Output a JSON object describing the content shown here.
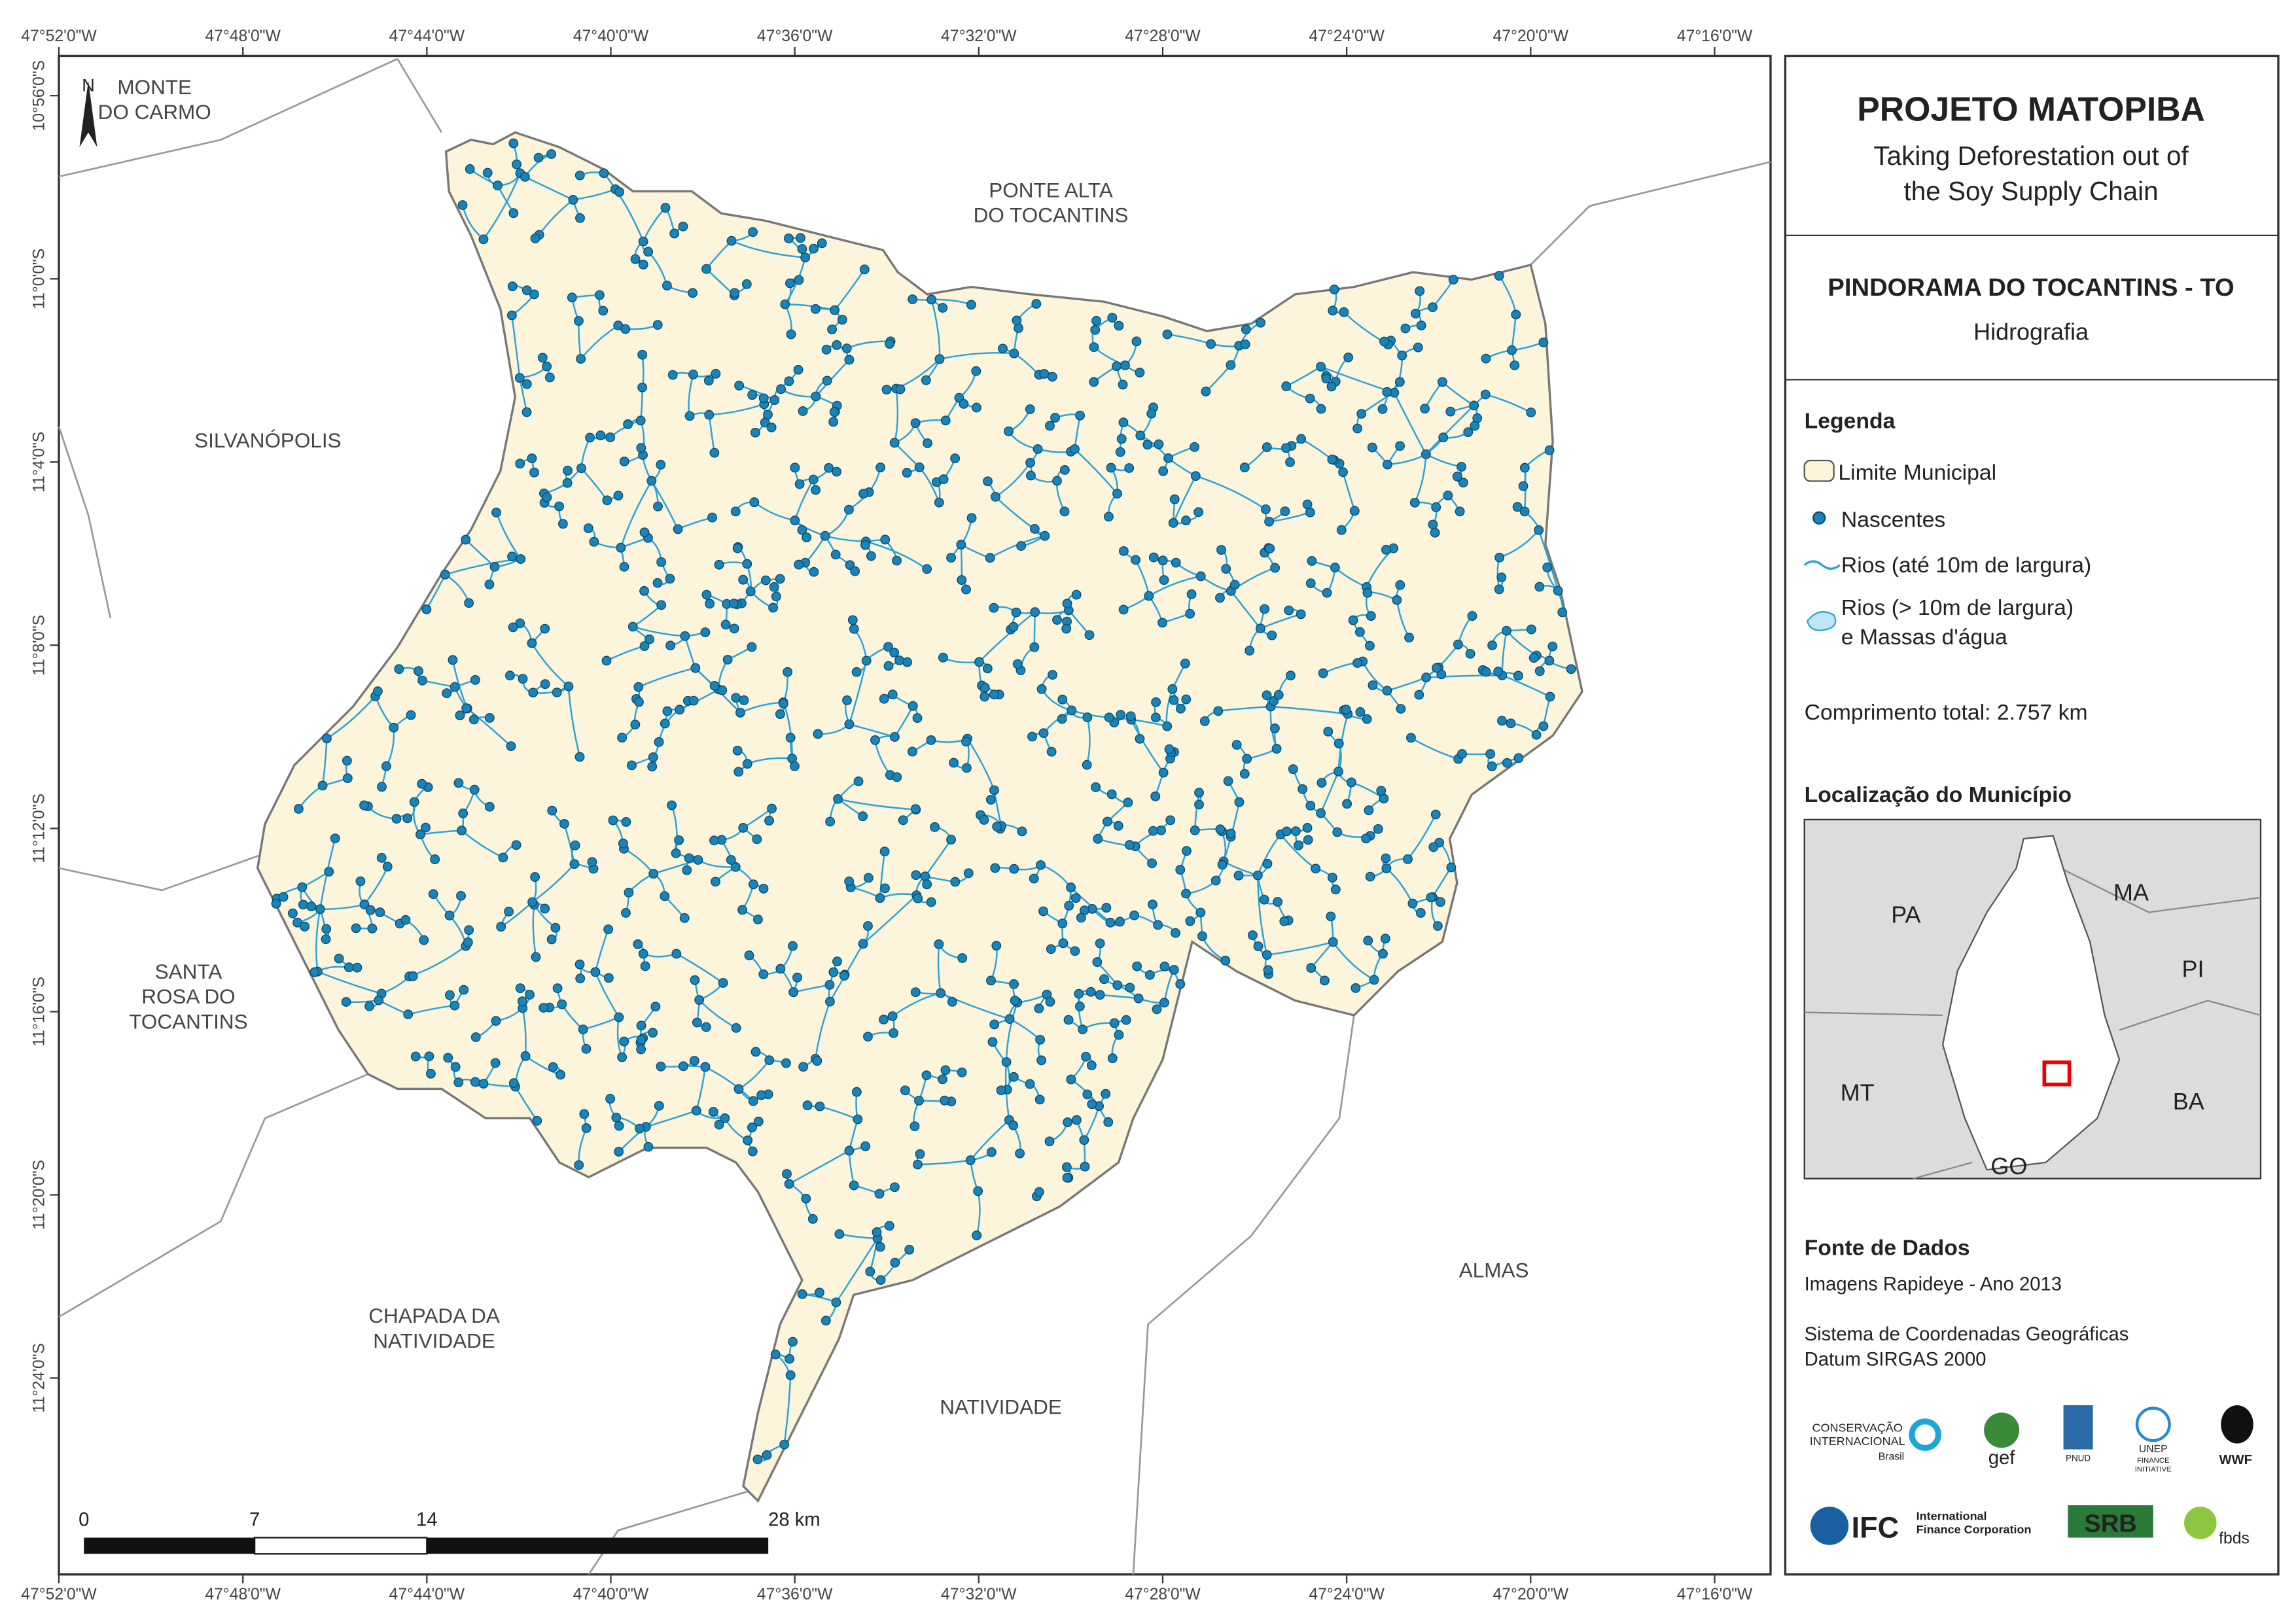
{
  "header": {
    "title": "PROJETO MATOPIBA",
    "subtitle": [
      "Taking Deforestation out of",
      "the Soy Supply Chain"
    ]
  },
  "municipality": {
    "name": "PINDORAMA DO TOCANTINS - TO",
    "theme": "Hidrografia"
  },
  "legend": {
    "heading": "Legenda",
    "items": [
      "Limite Municipal",
      "Nascentes",
      "Rios (até 10m de largura)"
    ],
    "water": [
      "Rios (> 10m de largura)",
      "e Massas d'água"
    ]
  },
  "total_length": "Comprimento total:  2.757 km",
  "location": {
    "heading": "Localização do Município",
    "labels": [
      "PA",
      "MA",
      "PI",
      "MT",
      "BA",
      "GO"
    ]
  },
  "sources": {
    "heading": "Fonte de Dados",
    "lines": [
      "Imagens Rapideye - Ano 2013",
      "Sistema de Coordenadas Geográficas",
      "Datum SIRGAS 2000"
    ]
  },
  "logos": [
    "CONSERVAÇÃO",
    "INTERNACIONAL",
    "Brasil",
    "gef",
    "PNUD",
    "UNEP",
    "FINANCE",
    "INITIATIVE",
    "WWF",
    "IFC",
    "International",
    "Finance Corporation",
    "SRB",
    "fbds"
  ],
  "map": {
    "north": "N",
    "neighbors": [
      [
        "MONTE",
        "DO CARMO"
      ],
      [
        "PONTE ALTA",
        "DO TOCANTINS"
      ],
      [
        "SILVANÓPOLIS"
      ],
      [
        "SANTA",
        "ROSA DO",
        "TOCANTINS"
      ],
      [
        "CHAPADA DA",
        "NATIVIDADE"
      ],
      [
        "NATIVIDADE"
      ],
      [
        "ALMAS"
      ]
    ],
    "lon_ticks": [
      "47°52'0\"W",
      "47°48'0\"W",
      "47°44'0\"W",
      "47°40'0\"W",
      "47°36'0\"W",
      "47°32'0\"W",
      "47°28'0\"W",
      "47°24'0\"W",
      "47°20'0\"W",
      "47°16'0\"W"
    ],
    "lat_ticks": [
      "10°56'0\"S",
      "11°0'0\"S",
      "11°4'0\"S",
      "11°8'0\"S",
      "11°12'0\"S",
      "11°16'0\"S",
      "11°20'0\"S",
      "11°24'0\"S"
    ],
    "scale": [
      "0",
      "7",
      "14",
      "28 km"
    ]
  }
}
